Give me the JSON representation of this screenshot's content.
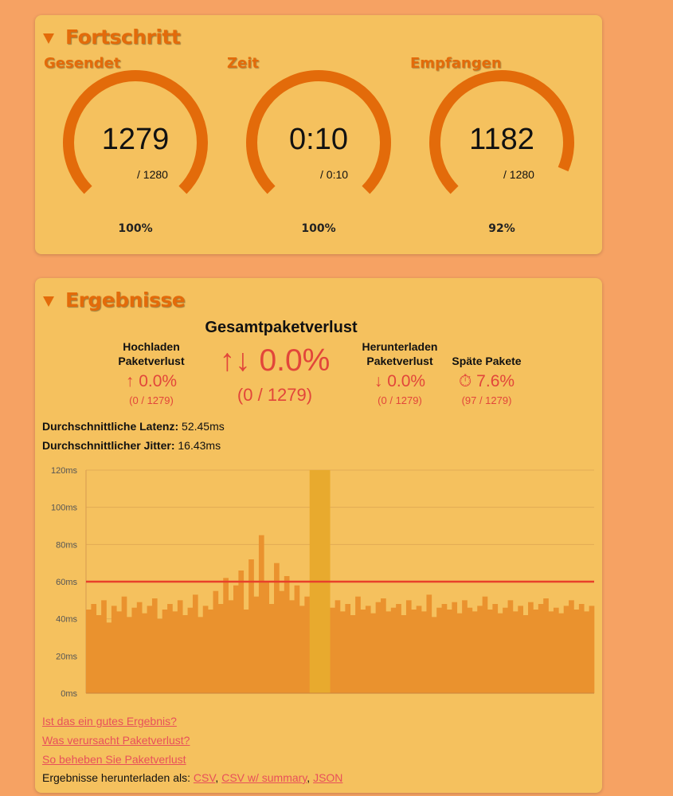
{
  "progress": {
    "title": "Fortschritt",
    "gauges": [
      {
        "label": "Gesendet",
        "value": "1279",
        "total": "/ 1280",
        "percent": {
          "value": 100,
          "label": "100%"
        }
      },
      {
        "label": "Zeit",
        "value": "0:10",
        "total": "/ 0:10",
        "percent": {
          "value": 100,
          "label": "100%"
        }
      },
      {
        "label": "Empfangen",
        "value": "1182",
        "total": "/ 1280",
        "percent": {
          "value": 92,
          "label": "92%"
        }
      }
    ],
    "color": "#e36b0a"
  },
  "results": {
    "title": "Ergebnisse",
    "total": {
      "heading": "Gesamtpaketverlust",
      "icon": "↑↓",
      "value": "0.0%",
      "detail": "(0 / 1279)"
    },
    "upload": {
      "heading": "Hochladen Paketverlust",
      "icon": "↑",
      "value": "0.0%",
      "detail": "(0 / 1279)"
    },
    "download": {
      "heading": "Herunterladen Paketverlust",
      "icon": "↓",
      "value": "0.0%",
      "detail": "(0 / 1279)"
    },
    "late": {
      "heading": "Späte Pakete",
      "icon": "⏱",
      "value": "7.6%",
      "detail": "(97 / 1279)"
    },
    "latency": {
      "label": "Durchschnittliche Latenz:",
      "value": "52.45ms"
    },
    "jitter": {
      "label": "Durchschnittlicher Jitter:",
      "value": "16.43ms"
    },
    "chart": {
      "type": "bar",
      "ylim": [
        0,
        120
      ],
      "yticks": [
        {
          "value": 0,
          "label": "0ms"
        },
        {
          "value": 20,
          "label": "20ms"
        },
        {
          "value": 40,
          "label": "40ms"
        },
        {
          "value": 60,
          "label": "60ms"
        },
        {
          "value": 80,
          "label": "80ms"
        },
        {
          "value": 100,
          "label": "100ms"
        },
        {
          "value": 120,
          "label": "120ms"
        }
      ],
      "grid": true,
      "threshold": 60,
      "threshold_color": "#e8402a",
      "color": "#ea922e",
      "late_color": "#e8aa2e",
      "values": [
        45,
        48,
        42,
        50,
        38,
        47,
        44,
        52,
        41,
        46,
        49,
        43,
        47,
        51,
        40,
        45,
        48,
        44,
        50,
        42,
        46,
        53,
        41,
        47,
        45,
        55,
        48,
        62,
        50,
        58,
        66,
        45,
        72,
        52,
        85,
        60,
        48,
        70,
        55,
        63,
        50,
        58,
        47,
        52,
        null,
        null,
        null,
        null,
        46,
        50,
        44,
        48,
        42,
        52,
        45,
        47,
        43,
        49,
        51,
        44,
        46,
        48,
        42,
        50,
        45,
        47,
        44,
        53,
        41,
        46,
        48,
        45,
        49,
        43,
        50,
        46,
        44,
        47,
        52,
        45,
        48,
        43,
        46,
        50,
        44,
        47,
        42,
        49,
        45,
        48,
        51,
        44,
        46,
        43,
        47,
        50,
        45,
        48,
        44,
        47
      ],
      "late_values": [
        null,
        null,
        null,
        null,
        null,
        null,
        null,
        null,
        null,
        null,
        null,
        null,
        null,
        null,
        null,
        null,
        null,
        null,
        null,
        null,
        null,
        null,
        null,
        null,
        null,
        null,
        null,
        null,
        null,
        null,
        null,
        null,
        null,
        null,
        null,
        null,
        null,
        null,
        null,
        null,
        null,
        null,
        null,
        null,
        120,
        120,
        120,
        120,
        null,
        null,
        null,
        null,
        null,
        null,
        null,
        null,
        null,
        null,
        null,
        null,
        null,
        null,
        null,
        null,
        null,
        null,
        null,
        null,
        null,
        null,
        null,
        null,
        null,
        null,
        null,
        null,
        null,
        null,
        null,
        null,
        null,
        null,
        null,
        null,
        null,
        null,
        null,
        null,
        null,
        null,
        null,
        null,
        null,
        null,
        null,
        null,
        null,
        null,
        null,
        null
      ]
    },
    "links": [
      "Ist das ein gutes Ergebnis?",
      "Was verursacht Paketverlust?",
      "So beheben Sie Paketverlust"
    ],
    "download_as": {
      "label": "Ergebnisse herunterladen als:",
      "separator": ", ",
      "formats": [
        "CSV",
        "CSV w/ summary",
        "JSON"
      ]
    }
  }
}
